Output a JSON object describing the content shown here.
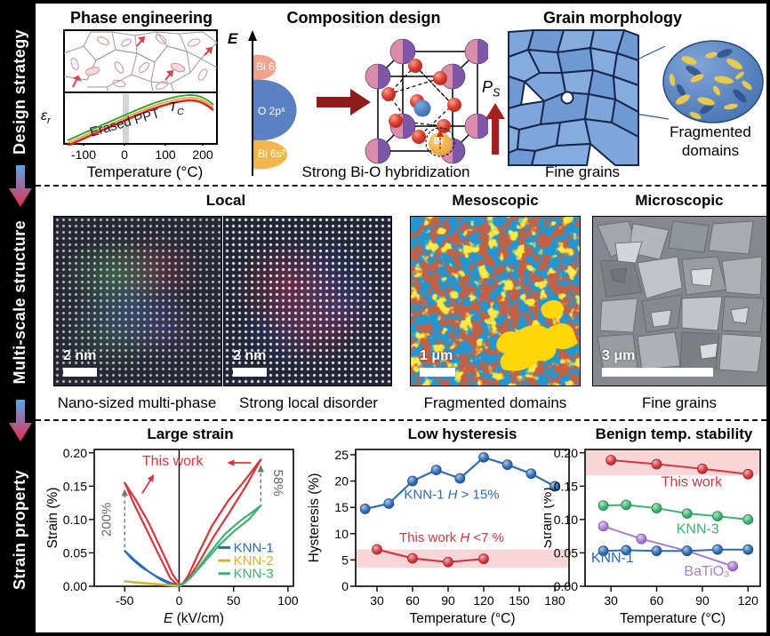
{
  "banner": {
    "sections": [
      {
        "label": "Design strategy"
      },
      {
        "label": "Multi-scale structure"
      },
      {
        "label": "Strain property"
      }
    ]
  },
  "row1": {
    "phase": {
      "title": "Phase engineering",
      "eps_base": "ε",
      "eps_sub": "r",
      "annotation": "Erased PPT",
      "tc_base": "T",
      "tc_sub": "C",
      "xticks": [
        "-100",
        "0",
        "100",
        "200"
      ],
      "xlabel": "Temperature (°C)"
    },
    "composition": {
      "title": "Composition design",
      "e_label": "E",
      "lobe_top": "Bi 6s&p",
      "lobe_mid": "O 2p⁶",
      "lobe_bot": "Bi 6s²",
      "bi_label": "Bi",
      "ps_base": "P",
      "ps_sub": "S",
      "caption": "Strong Bi-O hybridization"
    },
    "grain": {
      "title": "Grain morphology",
      "caption": "Fine grains",
      "inset_caption": "Fragmented domains"
    }
  },
  "row2": {
    "local_title": "Local",
    "meso_title": "Mesoscopic",
    "micro_title": "Microscopic",
    "images": [
      {
        "scale_bar": "2 nm",
        "caption": "Nano-sized multi-phase"
      },
      {
        "scale_bar": "2 nm",
        "caption": "Strong local disorder"
      },
      {
        "scale_bar": "1 μm",
        "caption": "Fragmented domains"
      },
      {
        "scale_bar": "3 μm",
        "caption": "Fine grains"
      }
    ]
  },
  "chart_data": [
    {
      "id": "0",
      "type": "line",
      "title": "Large strain",
      "title_x": 166,
      "box": {
        "x0": 58,
        "y0": 26,
        "x1": 282,
        "y1": 180
      },
      "xlim": [
        -78,
        105
      ],
      "ylim": [
        0,
        0.205
      ],
      "xticks": [
        -50,
        0,
        50,
        100
      ],
      "yticks": [
        0,
        0.05,
        0.1,
        0.15,
        0.2
      ],
      "ydec": 2,
      "xlabel_parts": [
        {
          "t": "E",
          "it": true
        },
        {
          "t": " (kV/cm)"
        }
      ],
      "ylabel": "Strain (%)",
      "ylx": 16,
      "zero_line": true,
      "series": [
        {
          "name": "This work",
          "color": "#d6373f",
          "width": 2.2,
          "marker": false,
          "points": [
            [
              0,
              0.004
            ],
            [
              -6,
              0.018
            ],
            [
              -15,
              0.05
            ],
            [
              -28,
              0.095
            ],
            [
              -40,
              0.13
            ],
            [
              -50,
              0.155
            ],
            [
              -42,
              0.125
            ],
            [
              -30,
              0.085
            ],
            [
              -18,
              0.045
            ],
            [
              -8,
              0.012
            ],
            [
              -1,
              0.001
            ],
            [
              2,
              0.001
            ],
            [
              8,
              0.015
            ],
            [
              18,
              0.05
            ],
            [
              30,
              0.09
            ],
            [
              45,
              0.128
            ],
            [
              60,
              0.158
            ],
            [
              75,
              0.19
            ],
            [
              62,
              0.152
            ],
            [
              48,
              0.115
            ],
            [
              32,
              0.075
            ],
            [
              18,
              0.035
            ],
            [
              8,
              0.01
            ],
            [
              1,
              0.002
            ]
          ]
        },
        {
          "name": "KNN-1",
          "color": "#2d6cb5",
          "width": 2.2,
          "marker": false,
          "points": [
            [
              -50,
              0.053
            ],
            [
              -40,
              0.038
            ],
            [
              -28,
              0.022
            ],
            [
              -16,
              0.009
            ],
            [
              -6,
              0.002
            ],
            [
              0,
              0.0005
            ],
            [
              -8,
              0.005
            ],
            [
              -20,
              0.014
            ],
            [
              -34,
              0.028
            ],
            [
              -44,
              0.042
            ],
            [
              -50,
              0.053
            ]
          ]
        },
        {
          "name": "KNN-2",
          "color": "#d4b428",
          "width": 2.2,
          "marker": false,
          "points": [
            [
              -50,
              0.0075
            ],
            [
              -38,
              0.005
            ],
            [
              -22,
              0.003
            ],
            [
              -8,
              0.001
            ],
            [
              0,
              0.0005
            ],
            [
              -14,
              0.0025
            ],
            [
              -30,
              0.0045
            ],
            [
              -44,
              0.0065
            ],
            [
              -50,
              0.0075
            ]
          ]
        },
        {
          "name": "KNN-3",
          "color": "#3cb371",
          "width": 2.2,
          "marker": false,
          "points": [
            [
              0,
              0.0005
            ],
            [
              6,
              0.006
            ],
            [
              16,
              0.024
            ],
            [
              28,
              0.05
            ],
            [
              42,
              0.078
            ],
            [
              56,
              0.098
            ],
            [
              68,
              0.112
            ],
            [
              75,
              0.121
            ],
            [
              64,
              0.1
            ],
            [
              50,
              0.082
            ],
            [
              36,
              0.06
            ],
            [
              22,
              0.034
            ],
            [
              10,
              0.012
            ],
            [
              2,
              0.001
            ]
          ]
        }
      ],
      "legend": {
        "x_line0": 36,
        "x_line1": 47,
        "x_text": 50,
        "ys": [
          0.058,
          0.0385,
          0.019
        ],
        "items": [
          "KNN-1",
          "KNN-2",
          "KNN-3"
        ],
        "colors": [
          "#2d6cb5",
          "#d4b428",
          "#3cb371"
        ]
      },
      "annotations": [
        {
          "parts": [
            {
              "t": "This work"
            }
          ],
          "x": -6,
          "y": 0.181,
          "color": "#d6373f",
          "size": 16,
          "anchor": "middle"
        },
        {
          "parts": [
            {
              "t": "200%"
            }
          ],
          "x": -63,
          "y": 0.1,
          "color": "#666666",
          "size": 15,
          "anchor": "middle",
          "rot": -90
        },
        {
          "parts": [
            {
              "t": "58%"
            }
          ],
          "x": 87,
          "y": 0.155,
          "color": "#666666",
          "size": 15,
          "anchor": "middle",
          "rot": 90
        }
      ],
      "arrows": [
        {
          "x1": -50,
          "y1": 0.058,
          "x2": -50,
          "y2": 0.146,
          "color": "#777777",
          "dash": "4 3",
          "w": 1.4
        },
        {
          "x1": 75,
          "y1": 0.127,
          "x2": 75,
          "y2": 0.182,
          "color": "#777777",
          "dash": "4 3",
          "w": 1.4
        },
        {
          "x1": -34,
          "y1": 0.139,
          "x2": -23,
          "y2": 0.168,
          "color": "#d6373f",
          "w": 1.8
        },
        {
          "x1": 66,
          "y1": 0.185,
          "x2": 44,
          "y2": 0.185,
          "color": "#d6373f",
          "w": 1.8
        }
      ]
    },
    {
      "id": "1",
      "type": "line",
      "title": "Low hysteresis",
      "title_x": 178,
      "box": {
        "x0": 58,
        "y0": 26,
        "x1": 298,
        "y1": 180
      },
      "xlim": [
        12,
        192
      ],
      "ylim": [
        0,
        26
      ],
      "xticks": [
        30,
        60,
        90,
        120,
        150,
        180
      ],
      "yticks": [
        0,
        5,
        10,
        15,
        20,
        25
      ],
      "ydec": 0,
      "xlabel_parts": [
        {
          "t": "Temperature (°C)"
        }
      ],
      "ylabel": "Hysteresis (%)",
      "ylx": 16,
      "bands": [
        {
          "y0": 3.5,
          "y1": 7,
          "color": "#f8d6d8"
        }
      ],
      "series": [
        {
          "name": "KNN-1",
          "color": "#2d6cb5",
          "width": 2.2,
          "marker": true,
          "points": [
            [
              20,
              14.7
            ],
            [
              40,
              15.7
            ],
            [
              60,
              20.0
            ],
            [
              80,
              22.1
            ],
            [
              100,
              20.5
            ],
            [
              120,
              24.5
            ],
            [
              140,
              23.1
            ],
            [
              160,
              21.4
            ],
            [
              180,
              19.0
            ]
          ]
        },
        {
          "name": "This work",
          "color": "#d6373f",
          "width": 2.2,
          "marker": true,
          "points": [
            [
              30,
              7.0
            ],
            [
              60,
              5.3
            ],
            [
              90,
              4.6
            ],
            [
              120,
              5.2
            ]
          ]
        }
      ],
      "annotations": [
        {
          "parts": [
            {
              "t": "KNN-1 "
            },
            {
              "t": "H",
              "it": true
            },
            {
              "t": " > 15%"
            }
          ],
          "x": 93,
          "y": 16.6,
          "color": "#2d6cb5",
          "size": 15,
          "anchor": "middle"
        },
        {
          "parts": [
            {
              "t": "This work "
            },
            {
              "t": "H",
              "it": true
            },
            {
              "t": " <7 %"
            }
          ],
          "x": 93,
          "y": 8.4,
          "color": "#d6373f",
          "size": 15,
          "anchor": "middle"
        }
      ]
    },
    {
      "id": "2",
      "type": "line",
      "title": "Benign temp. stability",
      "title_x": 146,
      "box": {
        "x0": 46,
        "y0": 26,
        "x1": 243,
        "y1": 180
      },
      "xlim": [
        13,
        128
      ],
      "ylim": [
        0,
        0.205
      ],
      "xticks": [
        30,
        60,
        90,
        120
      ],
      "yticks": [
        0,
        0.05,
        0.1,
        0.15,
        0.2
      ],
      "ydec": 2,
      "xlabel_parts": [
        {
          "t": "Temperature (°C)"
        }
      ],
      "ylabel": "Strain (%)",
      "ylx": 8,
      "bands": [
        {
          "y0": 0.166,
          "y1": 0.205,
          "color": "#f8d6d8"
        }
      ],
      "series": [
        {
          "name": "This work",
          "color": "#d6373f",
          "width": 2,
          "marker": true,
          "points": [
            [
              30,
              0.189
            ],
            [
              60,
              0.183
            ],
            [
              90,
              0.176
            ],
            [
              120,
              0.168
            ]
          ]
        },
        {
          "name": "KNN-3",
          "color": "#3cb371",
          "width": 2,
          "marker": true,
          "points": [
            [
              25,
              0.121
            ],
            [
              40,
              0.122
            ],
            [
              60,
              0.117
            ],
            [
              80,
              0.109
            ],
            [
              100,
              0.105
            ],
            [
              120,
              0.1
            ]
          ]
        },
        {
          "name": "BaTiO₃",
          "color": "#a77bd4",
          "width": 2,
          "marker": true,
          "points": [
            [
              25,
              0.09
            ],
            [
              50,
              0.071
            ],
            [
              80,
              0.053
            ],
            [
              110,
              0.03
            ]
          ]
        },
        {
          "name": "KNN-1",
          "color": "#2d6cb5",
          "width": 2,
          "marker": true,
          "points": [
            [
              25,
              0.053
            ],
            [
              40,
              0.054
            ],
            [
              60,
              0.053
            ],
            [
              80,
              0.053
            ],
            [
              100,
              0.055
            ],
            [
              120,
              0.055
            ]
          ]
        }
      ],
      "annotations": [
        {
          "parts": [
            {
              "t": "This work"
            }
          ],
          "x": 83,
          "y": 0.15,
          "color": "#d6373f",
          "size": 16,
          "anchor": "middle"
        },
        {
          "parts": [
            {
              "t": "KNN-3"
            }
          ],
          "x": 87,
          "y": 0.079,
          "color": "#3cb371",
          "size": 16,
          "anchor": "middle"
        },
        {
          "parts": [
            {
              "t": "KNN-1"
            }
          ],
          "x": 31,
          "y": 0.036,
          "color": "#2d6cb5",
          "size": 16,
          "anchor": "middle"
        },
        {
          "parts": [
            {
              "t": "BaTiO₃"
            }
          ],
          "x": 93,
          "y": 0.016,
          "color": "#a77bd4",
          "size": 16,
          "anchor": "middle"
        }
      ]
    }
  ]
}
